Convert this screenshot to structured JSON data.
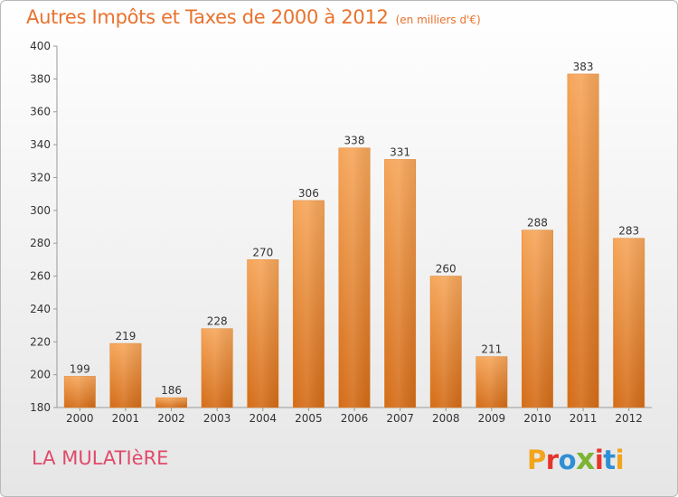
{
  "header": {
    "title": "Autres Impôts et Taxes de 2000 à 2012",
    "subtitle": "(en milliers d'€)"
  },
  "footer": {
    "commune": "LA MULATIèRE",
    "logo_letters": [
      "P",
      "r",
      "o",
      "x",
      "i",
      "t",
      "i"
    ],
    "logo_colors": [
      "#f2a41c",
      "#e6342a",
      "#2f8fd6",
      "#7db432",
      "#e6342a",
      "#2f8fd6",
      "#f2a41c"
    ]
  },
  "chart_data": {
    "type": "bar",
    "title": "Autres Impôts et Taxes de 2000 à 2012",
    "subtitle": "(en milliers d'€)",
    "categories": [
      "2000",
      "2001",
      "2002",
      "2003",
      "2004",
      "2005",
      "2006",
      "2007",
      "2008",
      "2009",
      "2010",
      "2011",
      "2012"
    ],
    "values": [
      199,
      219,
      186,
      228,
      270,
      306,
      338,
      331,
      260,
      211,
      288,
      383,
      283
    ],
    "ylim": [
      180,
      400
    ],
    "yticks": [
      180,
      200,
      220,
      240,
      260,
      280,
      300,
      320,
      340,
      360,
      380,
      400
    ],
    "grid": false,
    "bar_color": "#ec8a34"
  }
}
